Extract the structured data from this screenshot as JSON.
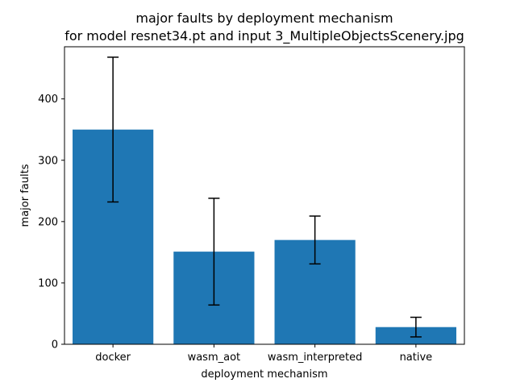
{
  "chart_data": {
    "type": "bar",
    "title": "major faults by deployment mechanism",
    "subtitle": "for model resnet34.pt and input 3_MultipleObjectsScenery.jpg",
    "xlabel": "deployment mechanism",
    "ylabel": "major faults",
    "categories": [
      "docker",
      "wasm_aot",
      "wasm_interpreted",
      "native"
    ],
    "values": [
      350,
      151,
      170,
      28
    ],
    "errors": [
      118,
      87,
      39,
      16
    ],
    "ylim": [
      0,
      485
    ],
    "yticks": [
      0,
      100,
      200,
      300,
      400
    ],
    "grid": false,
    "bar_color": "#1f77b4",
    "error_color": "#000000"
  }
}
